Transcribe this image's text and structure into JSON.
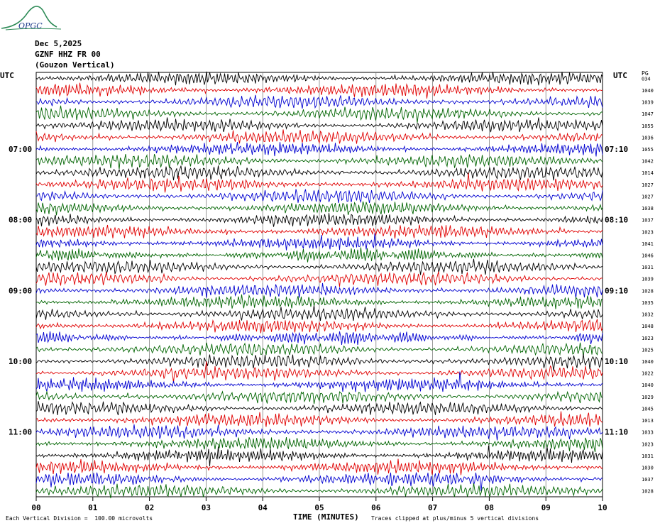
{
  "header": {
    "logo_text": "OPGC",
    "date": "Dec 5,2025",
    "station": "GZNF HHZ FR 00",
    "location": "(Gouzon Vertical)"
  },
  "colors": {
    "trace_cycle": [
      "#000000",
      "#e00000",
      "#0000d0",
      "#006400"
    ],
    "grid": "#808080",
    "logo": "#2e8b57"
  },
  "chart_data": {
    "type": "line",
    "title": "Dec 5,2025",
    "xlabel": "TIME (MINUTES)",
    "x_ticks": [
      "00",
      "01",
      "02",
      "03",
      "04",
      "05",
      "06",
      "07",
      "08",
      "09",
      "10"
    ],
    "xlim": [
      0,
      10
    ],
    "left_label": "UTC",
    "right_label": "UTC",
    "scale_label": "PG",
    "left_hour_labels": [
      {
        "row": 6,
        "label": "07:00"
      },
      {
        "row": 12,
        "label": "08:00"
      },
      {
        "row": 18,
        "label": "09:00"
      },
      {
        "row": 24,
        "label": "10:00"
      },
      {
        "row": 30,
        "label": "11:00"
      }
    ],
    "right_hour_labels": [
      {
        "row": 6,
        "label": "07:10"
      },
      {
        "row": 12,
        "label": "08:10"
      },
      {
        "row": 18,
        "label": "09:10"
      },
      {
        "row": 24,
        "label": "10:10"
      },
      {
        "row": 30,
        "label": "11:10"
      }
    ],
    "rows": 36,
    "row_scale_values": [
      "034",
      "1040",
      "1039",
      "1047",
      "1055",
      "1036",
      "1055",
      "1042",
      "1014",
      "1027",
      "1027",
      "1038",
      "1037",
      "1023",
      "1041",
      "1046",
      "1031",
      "1039",
      "1028",
      "1035",
      "1032",
      "1048",
      "1023",
      "1025",
      "1040",
      "1022",
      "1040",
      "1029",
      "1045",
      "1013",
      "1033",
      "1023",
      "1031",
      "1030",
      "1037",
      "1028"
    ],
    "footer_scale": "Each Vertical Division =  100.00 microvolts",
    "footer_clip": "Traces clipped at plus/minus 5 vertical divisions"
  }
}
